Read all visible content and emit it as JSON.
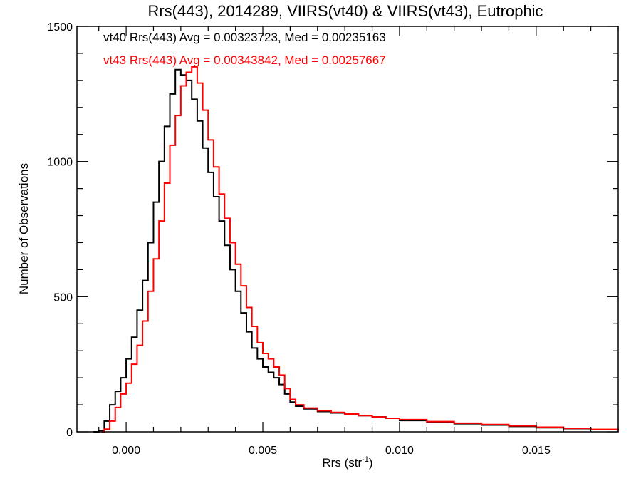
{
  "chart_data": {
    "type": "line",
    "title": "Rrs(443), 2014289, VIIRS(vt40) & VIIRS(vt43), Eutrophic",
    "xlabel": "Rrs (str",
    "xlabel_sup": "-1",
    "xlabel_end": ")",
    "ylabel": "Number of Observations",
    "xlim": [
      -0.0018,
      0.018
    ],
    "ylim": [
      0,
      1500
    ],
    "x_ticks": [
      0.0,
      0.005,
      0.01,
      0.015
    ],
    "x_tick_labels": [
      "0.000",
      "0.005",
      "0.010",
      "0.015"
    ],
    "y_ticks": [
      0,
      500,
      1000,
      1500
    ],
    "y_tick_labels": [
      "0",
      "500",
      "1000",
      "1500"
    ],
    "grid": false,
    "annotations": [
      {
        "text": "vt40 Rrs(443) Avg = 0.00323723, Med = 0.00235163",
        "color": "#000000"
      },
      {
        "text": "vt43 Rrs(443) Avg = 0.00343842, Med = 0.00257667",
        "color": "#ff0000"
      }
    ],
    "series": [
      {
        "name": "vt40",
        "color": "#000000",
        "points": [
          [
            -0.0012,
            0
          ],
          [
            -0.001,
            5
          ],
          [
            -0.0008,
            40
          ],
          [
            -0.0006,
            100
          ],
          [
            -0.0004,
            150
          ],
          [
            -0.0002,
            200
          ],
          [
            0.0,
            270
          ],
          [
            0.0002,
            350
          ],
          [
            0.0004,
            450
          ],
          [
            0.0006,
            560
          ],
          [
            0.0008,
            700
          ],
          [
            0.001,
            850
          ],
          [
            0.0012,
            1000
          ],
          [
            0.0014,
            1130
          ],
          [
            0.0016,
            1250
          ],
          [
            0.0018,
            1340
          ],
          [
            0.002,
            1320
          ],
          [
            0.0022,
            1300
          ],
          [
            0.0024,
            1230
          ],
          [
            0.0026,
            1150
          ],
          [
            0.0028,
            1050
          ],
          [
            0.003,
            960
          ],
          [
            0.0032,
            870
          ],
          [
            0.0034,
            780
          ],
          [
            0.0036,
            690
          ],
          [
            0.0038,
            600
          ],
          [
            0.004,
            520
          ],
          [
            0.0042,
            440
          ],
          [
            0.0044,
            370
          ],
          [
            0.0046,
            310
          ],
          [
            0.0048,
            270
          ],
          [
            0.005,
            240
          ],
          [
            0.0052,
            220
          ],
          [
            0.0054,
            200
          ],
          [
            0.0056,
            175
          ],
          [
            0.0058,
            140
          ],
          [
            0.006,
            110
          ],
          [
            0.0062,
            95
          ],
          [
            0.0065,
            85
          ],
          [
            0.007,
            75
          ],
          [
            0.0075,
            70
          ],
          [
            0.008,
            65
          ],
          [
            0.0085,
            60
          ],
          [
            0.009,
            55
          ],
          [
            0.0095,
            50
          ],
          [
            0.01,
            42
          ],
          [
            0.011,
            35
          ],
          [
            0.012,
            30
          ],
          [
            0.013,
            25
          ],
          [
            0.014,
            20
          ],
          [
            0.015,
            15
          ],
          [
            0.016,
            12
          ],
          [
            0.017,
            8
          ],
          [
            0.018,
            5
          ]
        ]
      },
      {
        "name": "vt43",
        "color": "#ff0000",
        "points": [
          [
            -0.0009,
            0
          ],
          [
            -0.0008,
            10
          ],
          [
            -0.0006,
            40
          ],
          [
            -0.0004,
            90
          ],
          [
            -0.0002,
            140
          ],
          [
            0.0,
            180
          ],
          [
            0.0002,
            250
          ],
          [
            0.0004,
            320
          ],
          [
            0.0006,
            410
          ],
          [
            0.0008,
            520
          ],
          [
            0.001,
            640
          ],
          [
            0.0012,
            780
          ],
          [
            0.0014,
            920
          ],
          [
            0.0016,
            1060
          ],
          [
            0.0018,
            1170
          ],
          [
            0.002,
            1280
          ],
          [
            0.0022,
            1330
          ],
          [
            0.0024,
            1350
          ],
          [
            0.0026,
            1290
          ],
          [
            0.0028,
            1190
          ],
          [
            0.003,
            1080
          ],
          [
            0.0032,
            980
          ],
          [
            0.0034,
            880
          ],
          [
            0.0036,
            790
          ],
          [
            0.0038,
            700
          ],
          [
            0.004,
            620
          ],
          [
            0.0042,
            540
          ],
          [
            0.0044,
            460
          ],
          [
            0.0046,
            390
          ],
          [
            0.0048,
            330
          ],
          [
            0.005,
            290
          ],
          [
            0.0052,
            270
          ],
          [
            0.0054,
            240
          ],
          [
            0.0056,
            210
          ],
          [
            0.0058,
            160
          ],
          [
            0.006,
            120
          ],
          [
            0.0062,
            100
          ],
          [
            0.0065,
            88
          ],
          [
            0.007,
            78
          ],
          [
            0.0075,
            72
          ],
          [
            0.008,
            66
          ],
          [
            0.0085,
            60
          ],
          [
            0.009,
            55
          ],
          [
            0.0095,
            50
          ],
          [
            0.01,
            45
          ],
          [
            0.011,
            38
          ],
          [
            0.012,
            32
          ],
          [
            0.013,
            27
          ],
          [
            0.014,
            22
          ],
          [
            0.015,
            17
          ],
          [
            0.016,
            13
          ],
          [
            0.017,
            9
          ],
          [
            0.018,
            6
          ]
        ]
      }
    ]
  }
}
